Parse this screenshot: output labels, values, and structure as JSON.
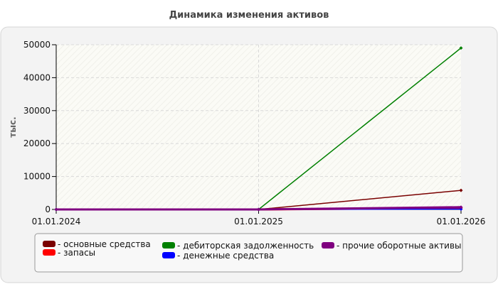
{
  "chart_data": {
    "type": "line",
    "title": "Динамика изменения активов",
    "xlabel": "",
    "ylabel": "тыс.",
    "x": [
      "01.01.2024",
      "01.01.2025",
      "01.01.2026"
    ],
    "ylim": [
      0,
      50000
    ],
    "yticks": [
      0,
      10000,
      20000,
      30000,
      40000,
      50000
    ],
    "grid": true,
    "legend_position": "bottom",
    "series": [
      {
        "name": "основные средства",
        "color": "#7a0000",
        "values": [
          0,
          0,
          5800
        ]
      },
      {
        "name": "запасы",
        "color": "#ff0000",
        "values": [
          0,
          0,
          500
        ]
      },
      {
        "name": "дебиторская задолженность",
        "color": "#008000",
        "values": [
          0,
          0,
          49000
        ]
      },
      {
        "name": "денежные средства",
        "color": "#0000ff",
        "values": [
          0,
          0,
          100
        ]
      },
      {
        "name": "прочие оборотные активы",
        "color": "#800080",
        "values": [
          0,
          0,
          700
        ]
      }
    ]
  }
}
